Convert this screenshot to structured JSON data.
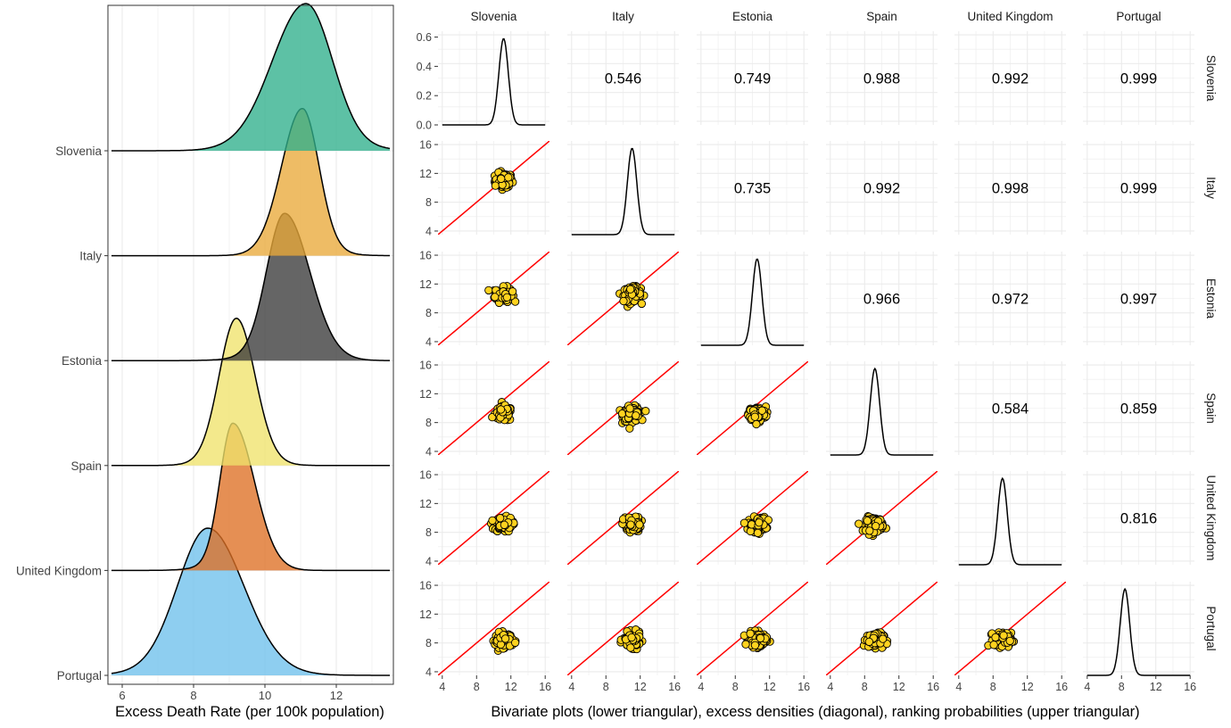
{
  "chart_data": [
    {
      "type": "area",
      "subtype": "ridgeline-density",
      "xlabel": "Excess Death Rate (per 100k population)",
      "ylabel": "",
      "xlim": [
        5.6,
        13.6
      ],
      "x_ticks": [
        "6",
        "8",
        "10",
        "12"
      ],
      "grid": true,
      "series": [
        {
          "name": "Slovenia",
          "color": "#2fb08c",
          "peak_x": 11.15,
          "min_x": 8.8,
          "max_x": 13.0
        },
        {
          "name": "Italy",
          "color": "#e9a93a",
          "peak_x": 11.05,
          "min_x": 9.6,
          "max_x": 12.2
        },
        {
          "name": "Estonia",
          "color": "#3a3a3a",
          "peak_x": 10.55,
          "min_x": 9.3,
          "max_x": 12.3
        },
        {
          "name": "Spain",
          "color": "#efe36b",
          "peak_x": 9.2,
          "min_x": 8.0,
          "max_x": 10.5
        },
        {
          "name": "United Kingdom",
          "color": "#de6f24",
          "peak_x": 9.1,
          "min_x": 8.2,
          "max_x": 10.6
        },
        {
          "name": "Portugal",
          "color": "#6ec0ec",
          "peak_x": 8.4,
          "min_x": 6.3,
          "max_x": 10.9
        }
      ],
      "legend": "none"
    },
    {
      "type": "scatter",
      "subtype": "pairs-matrix",
      "xlabel": "Bivariate plots (lower triangular), excess densities (diagonal), ranking probabilities (upper triangular)",
      "countries": [
        "Slovenia",
        "Italy",
        "Estonia",
        "Spain",
        "United Kingdom",
        "Portugal"
      ],
      "scatter_axis_ticks": [
        "4",
        "8",
        "12",
        "16"
      ],
      "scatter_axis_range": [
        3.5,
        16.5
      ],
      "density_axis_ticks": [
        "0.0",
        "0.2",
        "0.4",
        "0.6"
      ],
      "density_axis_range": [
        0,
        0.64
      ],
      "density_peak": 0.59,
      "reference_line": "y = x",
      "reference_line_color": "#ff0000",
      "point_color": "#ffd21f",
      "means": [
        11.15,
        11.05,
        10.55,
        9.2,
        9.1,
        8.4
      ],
      "probabilities": [
        {
          "row": 0,
          "col": 1,
          "value": "0.546"
        },
        {
          "row": 0,
          "col": 2,
          "value": "0.749"
        },
        {
          "row": 0,
          "col": 3,
          "value": "0.988"
        },
        {
          "row": 0,
          "col": 4,
          "value": "0.992"
        },
        {
          "row": 0,
          "col": 5,
          "value": "0.999"
        },
        {
          "row": 1,
          "col": 2,
          "value": "0.735"
        },
        {
          "row": 1,
          "col": 3,
          "value": "0.992"
        },
        {
          "row": 1,
          "col": 4,
          "value": "0.998"
        },
        {
          "row": 1,
          "col": 5,
          "value": "0.999"
        },
        {
          "row": 2,
          "col": 3,
          "value": "0.966"
        },
        {
          "row": 2,
          "col": 4,
          "value": "0.972"
        },
        {
          "row": 2,
          "col": 5,
          "value": "0.997"
        },
        {
          "row": 3,
          "col": 4,
          "value": "0.584"
        },
        {
          "row": 3,
          "col": 5,
          "value": "0.859"
        },
        {
          "row": 4,
          "col": 5,
          "value": "0.816"
        }
      ]
    }
  ]
}
